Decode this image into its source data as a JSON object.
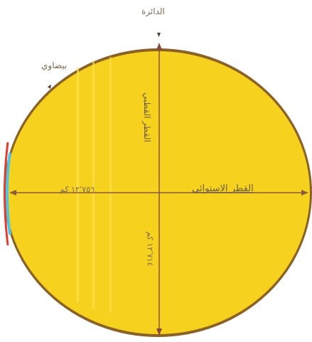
{
  "labels": {
    "circle": "الدائرة",
    "ellipse": "بيضاوي",
    "equatorial_diameter": "القطر الاستوائي",
    "equatorial_value": "١٢٬٧٥٦ كم",
    "polar_diameter": "القطر القطبي",
    "polar_value": "١٢٬٧١٤ كم"
  },
  "colors": {
    "disc_fill": "#f6d21e",
    "circle_outline": "#8a6226",
    "ellipse_edge_red": "#e43b2d",
    "ellipse_edge_cyan": "#4fc6e6",
    "axis_line": "#8a5a3a",
    "background": "#ffffff"
  }
}
